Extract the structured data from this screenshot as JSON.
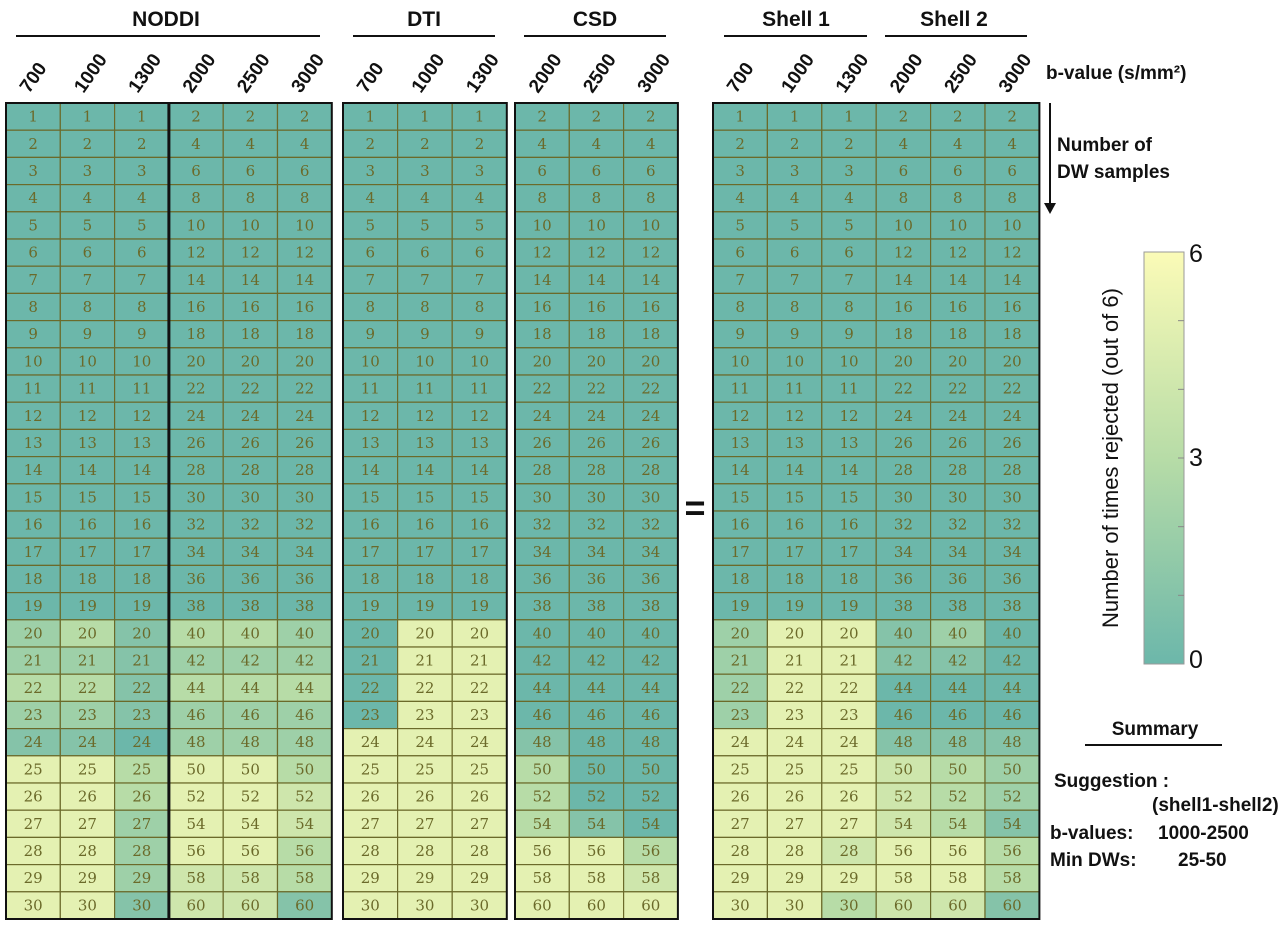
{
  "chart_data": {
    "type": "heatmap",
    "groups": [
      {
        "title": "NODDI",
        "columns": [
          "700",
          "1000",
          "1300",
          "2000",
          "2500",
          "3000"
        ]
      },
      {
        "title": "DTI",
        "columns": [
          "700",
          "1000",
          "1300"
        ]
      },
      {
        "title": "CSD",
        "columns": [
          "2000",
          "2500",
          "3000"
        ]
      },
      {
        "title": "Shell 1",
        "columns": [
          "700",
          "1000",
          "1300"
        ]
      },
      {
        "title": "Shell 2",
        "columns": [
          "2000",
          "2500",
          "3000"
        ]
      }
    ],
    "x_axis_label": "b-value (s/mm²)",
    "y_axis_label_line1": "Number of",
    "y_axis_label_line2": "DW samples",
    "equals_sign": "=",
    "colorbar": {
      "label": "Number of times rejected (out of 6)",
      "min": 0,
      "max": 6,
      "ticks": [
        "0",
        "3",
        "6"
      ],
      "color_low": "#6cb7aa",
      "color_high": "#fbfbb7"
    },
    "panels": [
      {
        "name": "NODDI",
        "shell_cols": 3,
        "values": [
          [
            0,
            0,
            0,
            0,
            0,
            0
          ],
          [
            0,
            0,
            0,
            0,
            0,
            0
          ],
          [
            0,
            0,
            0,
            0,
            0,
            0
          ],
          [
            0,
            0,
            0,
            0,
            0,
            0
          ],
          [
            0,
            0,
            0,
            0,
            0,
            0
          ],
          [
            0,
            0,
            0,
            0,
            0,
            0
          ],
          [
            0,
            0,
            0,
            0,
            0,
            0
          ],
          [
            0,
            0,
            0,
            0,
            0,
            0
          ],
          [
            0,
            0,
            0,
            0,
            0,
            0
          ],
          [
            0,
            0,
            0,
            0,
            0,
            0
          ],
          [
            0,
            0,
            0,
            0,
            0,
            0
          ],
          [
            0,
            0,
            0,
            0,
            0,
            0
          ],
          [
            0,
            0,
            0,
            0,
            0,
            0
          ],
          [
            0,
            0,
            0,
            0,
            0,
            0
          ],
          [
            0,
            0,
            0,
            0,
            0,
            0
          ],
          [
            0,
            0,
            0,
            0,
            0,
            0
          ],
          [
            0,
            0,
            0,
            0,
            0,
            0
          ],
          [
            0,
            0,
            0,
            0,
            0,
            0
          ],
          [
            0,
            0,
            0,
            0,
            0,
            0
          ],
          [
            2,
            3,
            1,
            3,
            3,
            2
          ],
          [
            2,
            2,
            1,
            2,
            2,
            2
          ],
          [
            3,
            3,
            1,
            3,
            3,
            3
          ],
          [
            2,
            2,
            1,
            2,
            2,
            2
          ],
          [
            1,
            1,
            0,
            2,
            2,
            2
          ],
          [
            5,
            5,
            3,
            5,
            5,
            3
          ],
          [
            5,
            5,
            3,
            5,
            5,
            4
          ],
          [
            5,
            5,
            2,
            5,
            5,
            4
          ],
          [
            5,
            5,
            2,
            5,
            5,
            3
          ],
          [
            5,
            5,
            2,
            4,
            4,
            3
          ],
          [
            5,
            5,
            1,
            4,
            4,
            1
          ]
        ]
      },
      {
        "name": "DTI",
        "shell_cols": 3,
        "values": [
          [
            0,
            0,
            0
          ],
          [
            0,
            0,
            0
          ],
          [
            0,
            0,
            0
          ],
          [
            0,
            0,
            0
          ],
          [
            0,
            0,
            0
          ],
          [
            0,
            0,
            0
          ],
          [
            0,
            0,
            0
          ],
          [
            0,
            0,
            0
          ],
          [
            0,
            0,
            0
          ],
          [
            0,
            0,
            0
          ],
          [
            0,
            0,
            0
          ],
          [
            0,
            0,
            0
          ],
          [
            0,
            0,
            0
          ],
          [
            0,
            0,
            0
          ],
          [
            0,
            0,
            0
          ],
          [
            0,
            0,
            0
          ],
          [
            0,
            0,
            0
          ],
          [
            0,
            0,
            0
          ],
          [
            0,
            0,
            0
          ],
          [
            0,
            5,
            5
          ],
          [
            0,
            5,
            5
          ],
          [
            0,
            5,
            5
          ],
          [
            0,
            5,
            5
          ],
          [
            5,
            5,
            5
          ],
          [
            5,
            5,
            5
          ],
          [
            5,
            5,
            5
          ],
          [
            5,
            5,
            5
          ],
          [
            5,
            5,
            5
          ],
          [
            5,
            5,
            5
          ],
          [
            5,
            5,
            5
          ]
        ]
      },
      {
        "name": "CSD",
        "shell_cols": 3,
        "values": [
          [
            0,
            0,
            0
          ],
          [
            0,
            0,
            0
          ],
          [
            0,
            0,
            0
          ],
          [
            0,
            0,
            0
          ],
          [
            0,
            0,
            0
          ],
          [
            0,
            0,
            0
          ],
          [
            0,
            0,
            0
          ],
          [
            0,
            0,
            0
          ],
          [
            0,
            0,
            0
          ],
          [
            0,
            0,
            0
          ],
          [
            0,
            0,
            0
          ],
          [
            0,
            0,
            0
          ],
          [
            0,
            0,
            0
          ],
          [
            0,
            0,
            0
          ],
          [
            0,
            0,
            0
          ],
          [
            0,
            0,
            0
          ],
          [
            0,
            0,
            0
          ],
          [
            0,
            0,
            0
          ],
          [
            0,
            0,
            0
          ],
          [
            0,
            0,
            0
          ],
          [
            0,
            0,
            0
          ],
          [
            0,
            0,
            0
          ],
          [
            0,
            0,
            0
          ],
          [
            1,
            0,
            0
          ],
          [
            3,
            0,
            0
          ],
          [
            3,
            0,
            0
          ],
          [
            3,
            1,
            0
          ],
          [
            5,
            5,
            3
          ],
          [
            5,
            5,
            4
          ],
          [
            5,
            5,
            5
          ]
        ]
      },
      {
        "name": "Shell1-Shell2",
        "shell_cols": 3,
        "values": [
          [
            0,
            0,
            0,
            0,
            0,
            0
          ],
          [
            0,
            0,
            0,
            0,
            0,
            0
          ],
          [
            0,
            0,
            0,
            0,
            0,
            0
          ],
          [
            0,
            0,
            0,
            0,
            0,
            0
          ],
          [
            0,
            0,
            0,
            0,
            0,
            0
          ],
          [
            0,
            0,
            0,
            0,
            0,
            0
          ],
          [
            0,
            0,
            0,
            0,
            0,
            0
          ],
          [
            0,
            0,
            0,
            0,
            0,
            0
          ],
          [
            0,
            0,
            0,
            0,
            0,
            0
          ],
          [
            0,
            0,
            0,
            0,
            0,
            0
          ],
          [
            0,
            0,
            0,
            0,
            0,
            0
          ],
          [
            0,
            0,
            0,
            0,
            0,
            0
          ],
          [
            0,
            0,
            0,
            0,
            0,
            0
          ],
          [
            0,
            0,
            0,
            0,
            0,
            0
          ],
          [
            0,
            0,
            0,
            0,
            0,
            0
          ],
          [
            0,
            0,
            0,
            0,
            0,
            0
          ],
          [
            0,
            0,
            0,
            0,
            0,
            0
          ],
          [
            0,
            0,
            0,
            0,
            0,
            0
          ],
          [
            0,
            0,
            0,
            0,
            0,
            0
          ],
          [
            2,
            5,
            5,
            1,
            2,
            0
          ],
          [
            2,
            5,
            5,
            1,
            1,
            0
          ],
          [
            2,
            5,
            5,
            0,
            0,
            0
          ],
          [
            2,
            5,
            5,
            0,
            0,
            0
          ],
          [
            5,
            5,
            5,
            1,
            1,
            1
          ],
          [
            5,
            5,
            5,
            4,
            3,
            2
          ],
          [
            5,
            5,
            5,
            4,
            3,
            2
          ],
          [
            5,
            5,
            5,
            4,
            3,
            1
          ],
          [
            5,
            5,
            4,
            5,
            5,
            3
          ],
          [
            5,
            5,
            5,
            5,
            5,
            3
          ],
          [
            5,
            5,
            3,
            4,
            4,
            1
          ]
        ]
      }
    ]
  },
  "summary": {
    "title": "Summary",
    "suggestion_label": "Suggestion :",
    "suggestion_sub": "(shell1-shell2)",
    "bvalues_label": "b-values:",
    "bvalues": "1000-2500",
    "min_dw_label": "Min DWs:",
    "min_dw": "25-50"
  }
}
